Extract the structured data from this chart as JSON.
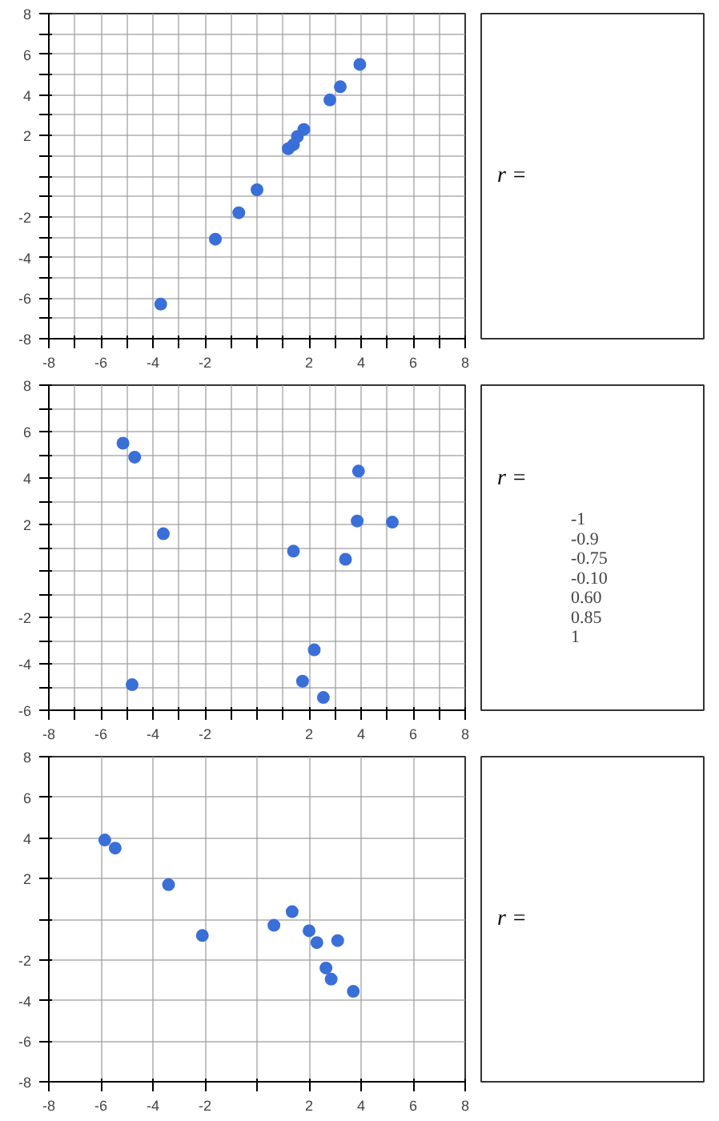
{
  "chart_data": [
    {
      "type": "scatter",
      "color": "#3a6fd8",
      "marker": "circle",
      "grid": true,
      "xlim": [
        -8,
        8
      ],
      "ylim": [
        -8,
        8
      ],
      "x": [
        3.95,
        3.2,
        2.8,
        1.8,
        1.55,
        1.4,
        1.2,
        0,
        -0.7,
        -1.6,
        -3.7
      ],
      "values": [
        5.5,
        4.4,
        3.75,
        2.3,
        1.95,
        1.55,
        1.35,
        -0.67,
        -1.8,
        -3.1,
        -6.3
      ],
      "xticks": [
        -8,
        {
          "value": -7,
          "label": null
        },
        -6,
        {
          "value": -5,
          "label": null
        },
        -4,
        {
          "value": -3,
          "label": null
        },
        -2,
        {
          "value": -1,
          "label": null
        },
        {
          "value": 0,
          "label": null
        },
        {
          "value": 1,
          "label": null
        },
        2,
        {
          "value": 3,
          "label": null
        },
        4,
        {
          "value": 5,
          "label": null
        },
        6,
        {
          "value": 7,
          "label": null
        },
        8
      ],
      "yticks": [
        -8,
        {
          "value": -7,
          "label": null
        },
        -6,
        {
          "value": -5,
          "label": null
        },
        -4,
        {
          "value": -3,
          "label": null
        },
        -2,
        {
          "value": -1,
          "label": null
        },
        {
          "value": 0,
          "label": null
        },
        {
          "value": 1,
          "label": null
        },
        2,
        {
          "value": 3,
          "label": null
        },
        4,
        {
          "value": 5,
          "label": null
        },
        6,
        {
          "value": 7,
          "label": null
        },
        8
      ]
    },
    {
      "type": "other",
      "annotations": [
        "r ="
      ]
    },
    {
      "type": "scatter",
      "color": "#3a6fd8",
      "marker": "circle",
      "grid": true,
      "xlim": [
        -8,
        8
      ],
      "ylim": [
        -6,
        8
      ],
      "x": [
        -5.15,
        -4.7,
        -3.6,
        -4.8,
        1.4,
        3.4,
        3.9,
        3.85,
        5.2,
        2.2,
        1.75,
        2.55
      ],
      "values": [
        5.5,
        4.9,
        1.6,
        -4.9,
        0.85,
        0.5,
        4.3,
        2.15,
        2.1,
        -3.4,
        -4.75,
        -5.45
      ],
      "xticks": [
        -8,
        {
          "value": -7,
          "label": null
        },
        -6,
        {
          "value": -5,
          "label": null
        },
        -4,
        {
          "value": -3,
          "label": null
        },
        -2,
        {
          "value": -1,
          "label": null
        },
        {
          "value": 0,
          "label": null
        },
        {
          "value": 1,
          "label": null
        },
        2,
        {
          "value": 3,
          "label": null
        },
        4,
        {
          "value": 5,
          "label": null
        },
        6,
        {
          "value": 7,
          "label": null
        },
        8
      ],
      "yticks": [
        -6,
        {
          "value": -5,
          "label": null
        },
        -4,
        {
          "value": -3,
          "label": null
        },
        -2,
        {
          "value": -1,
          "label": null
        },
        {
          "value": 0,
          "label": null
        },
        {
          "value": 1,
          "label": null
        },
        2,
        {
          "value": 3,
          "label": null
        },
        4,
        {
          "value": 5,
          "label": null
        },
        6,
        {
          "value": 7,
          "label": null
        },
        8
      ]
    },
    {
      "type": "other",
      "annotations": [
        "r =",
        "-1",
        "-0.9",
        "-0.75",
        "-0.10",
        "0.60",
        "0.85",
        "1"
      ]
    },
    {
      "type": "scatter",
      "color": "#3a6fd8",
      "marker": "circle",
      "grid": true,
      "xlim": [
        -8,
        8
      ],
      "ylim": [
        -8,
        8
      ],
      "x": [
        -5.85,
        -5.45,
        -3.4,
        -2.1,
        1.35,
        0.65,
        2.0,
        2.3,
        3.1,
        2.65,
        2.85,
        3.7
      ],
      "values": [
        3.9,
        3.5,
        1.7,
        -0.8,
        0.37,
        -0.3,
        -0.57,
        -1.15,
        -1.05,
        -2.4,
        -2.95,
        -3.55
      ],
      "xticks": [
        -8,
        {
          "value": -6,
          "label": "-6"
        },
        -4,
        -2,
        {
          "value": 0,
          "label": null
        },
        2,
        4,
        6,
        8
      ],
      "yticks": [
        -8,
        -6,
        -4,
        -2,
        {
          "value": 0,
          "label": null
        },
        2,
        4,
        6,
        8
      ]
    },
    {
      "type": "other",
      "annotations": [
        "r ="
      ]
    }
  ]
}
